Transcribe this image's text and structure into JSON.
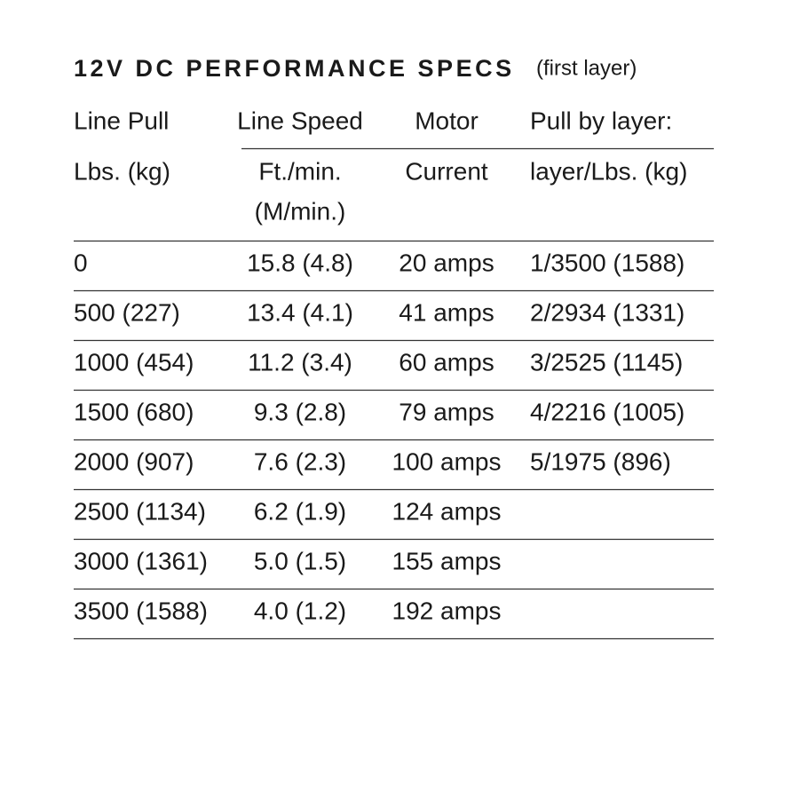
{
  "title": "12V DC PERFORMANCE SPECS",
  "subtitle": "(first layer)",
  "columns": [
    {
      "lines": [
        "Line Pull",
        "Lbs. (kg)"
      ]
    },
    {
      "lines": [
        "Line Speed",
        "Ft./min.",
        "(M/min.)"
      ]
    },
    {
      "lines": [
        "Motor",
        "Current"
      ]
    },
    {
      "lines": [
        "Pull by layer:",
        "layer/Lbs. (kg)"
      ]
    }
  ],
  "rows": [
    [
      "0",
      "15.8 (4.8)",
      "20 amps",
      "1/3500 (1588)"
    ],
    [
      "500 (227)",
      "13.4 (4.1)",
      "41 amps",
      "2/2934 (1331)"
    ],
    [
      "1000 (454)",
      "11.2 (3.4)",
      "60 amps",
      "3/2525 (1145)"
    ],
    [
      "1500 (680)",
      "9.3 (2.8)",
      "79 amps",
      "4/2216 (1005)"
    ],
    [
      "2000 (907)",
      "7.6 (2.3)",
      "100 amps",
      "5/1975 (896)"
    ],
    [
      "2500 (1134)",
      "6.2 (1.9)",
      "124 amps"
    ],
    [
      "3000 (1361)",
      "5.0 (1.5)",
      "155 amps"
    ],
    [
      "3500 (1588)",
      "4.0 (1.2)",
      "192 amps"
    ]
  ]
}
